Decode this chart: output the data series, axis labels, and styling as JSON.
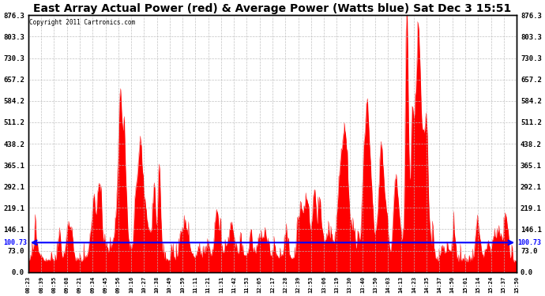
{
  "title": "East Array Actual Power (red) & Average Power (Watts blue) Sat Dec 3 15:51",
  "copyright": "Copyright 2011 Cartronics.com",
  "ymin": 0.0,
  "ymax": 876.3,
  "yticks": [
    0.0,
    73.0,
    146.1,
    219.1,
    292.1,
    365.1,
    438.2,
    511.2,
    584.2,
    657.2,
    730.3,
    803.3,
    876.3
  ],
  "ytick_labels": [
    "0.0",
    "73.0",
    "146.1",
    "219.1",
    "292.1",
    "365.1",
    "438.2",
    "511.2",
    "584.2",
    "657.2",
    "730.3",
    "803.3",
    "876.3"
  ],
  "avg_power": 100.73,
  "avg_label": "100.73",
  "background_color": "#ffffff",
  "plot_bg_color": "#ffffff",
  "grid_color": "#bbbbbb",
  "actual_color": "#ff0000",
  "avg_color": "#0000ff",
  "title_fontsize": 10,
  "xtick_labels": [
    "08:23",
    "08:39",
    "08:55",
    "09:08",
    "09:21",
    "09:34",
    "09:45",
    "09:56",
    "10:16",
    "10:27",
    "10:38",
    "10:49",
    "10:59",
    "11:11",
    "11:21",
    "11:31",
    "11:42",
    "11:53",
    "12:05",
    "12:17",
    "12:28",
    "12:39",
    "12:53",
    "13:06",
    "13:19",
    "13:30",
    "13:40",
    "13:50",
    "14:03",
    "14:13",
    "14:23",
    "14:35",
    "14:37",
    "14:50",
    "15:01",
    "15:14",
    "15:24",
    "15:37",
    "15:50"
  ]
}
